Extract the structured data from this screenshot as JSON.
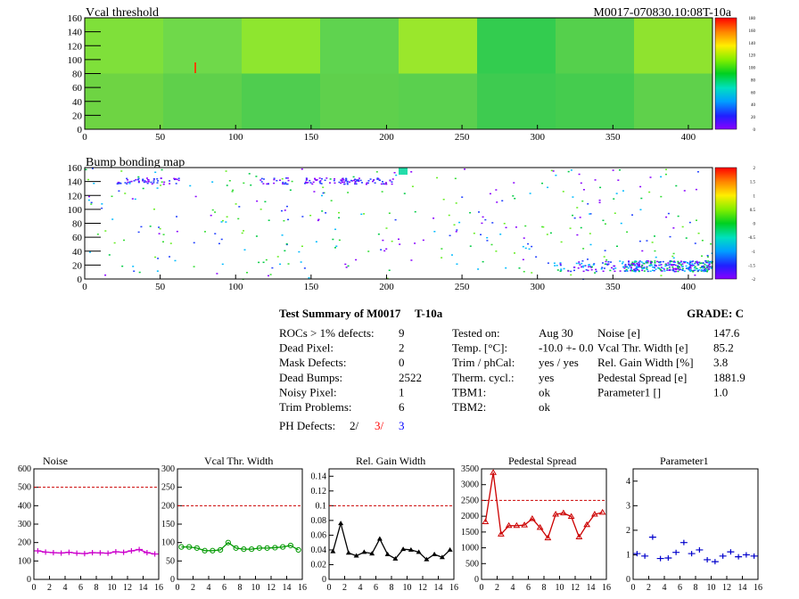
{
  "maps": [
    {
      "title": "Vcal threshold",
      "id_label": "M0017-070830.10:08T-10a",
      "x_ticks": [
        "0",
        "50",
        "100",
        "150",
        "200",
        "250",
        "300",
        "350",
        "400"
      ],
      "y_ticks": [
        "0",
        "20",
        "40",
        "60",
        "80",
        "100",
        "120",
        "140",
        "160"
      ],
      "colorbar_ticks": [
        "0",
        "20",
        "40",
        "60",
        "80",
        "100",
        "120",
        "140",
        "160",
        "180"
      ]
    },
    {
      "title": "Bump bonding map",
      "x_ticks": [
        "0",
        "50",
        "100",
        "150",
        "200",
        "250",
        "300",
        "350",
        "400"
      ],
      "y_ticks": [
        "0",
        "20",
        "40",
        "60",
        "80",
        "100",
        "120",
        "140",
        "160"
      ],
      "colorbar_ticks": [
        "-2",
        "-1.5",
        "-1",
        "-0.5",
        "0",
        "0.5",
        "1",
        "1.5",
        "2"
      ]
    }
  ],
  "summary": {
    "title": "Test Summary of M0017",
    "temp_label": "T-10a",
    "grade": "GRADE:  C",
    "rows_left": [
      {
        "label": "ROCs > 1% defects:",
        "value": "9"
      },
      {
        "label": "Dead Pixel:",
        "value": "2"
      },
      {
        "label": "Mask Defects:",
        "value": "0"
      },
      {
        "label": "Dead Bumps:",
        "value": "2522"
      },
      {
        "label": "Noisy Pixel:",
        "value": "1"
      },
      {
        "label": "Trim Problems:",
        "value": "6"
      }
    ],
    "ph_defects": {
      "label": "PH Defects:",
      "v1": "2/",
      "v2": "3/",
      "v3": "3",
      "c1": "#000000",
      "c2": "#ff0000",
      "c3": "#0000ff"
    },
    "rows_mid": [
      {
        "label": "Tested on:",
        "value": "Aug 30"
      },
      {
        "label": "Temp. [°C]:",
        "value": "-10.0 +- 0.0"
      },
      {
        "label": "Trim / phCal:",
        "value": "yes / yes"
      },
      {
        "label": "Therm. cycl.:",
        "value": "yes"
      },
      {
        "label": "TBM1:",
        "value": "ok"
      },
      {
        "label": "TBM2:",
        "value": "ok"
      }
    ],
    "rows_right": [
      {
        "label": "Noise [e]",
        "value": "147.6"
      },
      {
        "label": "Vcal Thr. Width [e]",
        "value": "85.2"
      },
      {
        "label": "Rel. Gain Width [%]",
        "value": "3.8"
      },
      {
        "label": "Pedestal Spread [e]",
        "value": "1881.9"
      },
      {
        "label": "Parameter1 []",
        "value": "1.0"
      }
    ]
  },
  "chart_data": [
    {
      "type": "line",
      "title": "Noise",
      "x": [
        0,
        1,
        2,
        3,
        4,
        5,
        6,
        7,
        8,
        9,
        10,
        11,
        12,
        13,
        14,
        15
      ],
      "values": [
        155,
        148,
        145,
        143,
        147,
        142,
        140,
        145,
        144,
        142,
        150,
        147,
        155,
        162,
        145,
        138
      ],
      "ylim": [
        0,
        600
      ],
      "y_ticks": [
        "0",
        "100",
        "200",
        "300",
        "400",
        "500",
        "600"
      ],
      "x_ticks": [
        "0",
        "2",
        "4",
        "6",
        "8",
        "10",
        "12",
        "14",
        "16"
      ],
      "threshold": 500,
      "color": "#cc00cc",
      "marker": "plus"
    },
    {
      "type": "line",
      "title": "Vcal Thr. Width",
      "x": [
        0,
        1,
        2,
        3,
        4,
        5,
        6,
        7,
        8,
        9,
        10,
        11,
        12,
        13,
        14,
        15
      ],
      "values": [
        88,
        88,
        85,
        78,
        78,
        80,
        100,
        85,
        82,
        82,
        85,
        85,
        86,
        88,
        92,
        80
      ],
      "ylim": [
        0,
        300
      ],
      "y_ticks": [
        "0",
        "50",
        "100",
        "150",
        "200",
        "250",
        "300"
      ],
      "x_ticks": [
        "0",
        "2",
        "4",
        "6",
        "8",
        "10",
        "12",
        "14",
        "16"
      ],
      "threshold": 200,
      "color": "#009900",
      "marker": "circle"
    },
    {
      "type": "line",
      "title": "Rel. Gain Width",
      "x": [
        0,
        1,
        2,
        3,
        4,
        5,
        6,
        7,
        8,
        9,
        10,
        11,
        12,
        13,
        14,
        15
      ],
      "values": [
        0.038,
        0.076,
        0.036,
        0.032,
        0.037,
        0.035,
        0.055,
        0.034,
        0.028,
        0.041,
        0.04,
        0.037,
        0.027,
        0.034,
        0.03,
        0.04
      ],
      "ylim": [
        0,
        0.15
      ],
      "y_ticks": [
        "0",
        "0.02",
        "0.04",
        "0.06",
        "0.08",
        "0.1",
        "0.12",
        "0.14"
      ],
      "y_tick_values": [
        0,
        0.02,
        0.04,
        0.06,
        0.08,
        0.1,
        0.12,
        0.14
      ],
      "x_ticks": [
        "0",
        "2",
        "4",
        "6",
        "8",
        "10",
        "12",
        "14",
        "16"
      ],
      "threshold": 0.1,
      "color": "#000000",
      "marker": "triangle"
    },
    {
      "type": "line",
      "title": "Pedestal Spread",
      "x": [
        0,
        1,
        2,
        3,
        4,
        5,
        6,
        7,
        8,
        9,
        10,
        11,
        12,
        13,
        14,
        15
      ],
      "values": [
        1820,
        3380,
        1430,
        1700,
        1700,
        1720,
        1920,
        1640,
        1310,
        2060,
        2100,
        1990,
        1340,
        1730,
        2060,
        2120
      ],
      "ylim": [
        0,
        3500
      ],
      "y_ticks": [
        "0",
        "500",
        "1000",
        "1500",
        "2000",
        "2500",
        "3000",
        "3500"
      ],
      "x_ticks": [
        "0",
        "2",
        "4",
        "6",
        "8",
        "10",
        "12",
        "14",
        "16"
      ],
      "threshold": 2500,
      "color": "#cc0000",
      "marker": "open-triangle"
    },
    {
      "type": "scatter",
      "title": "Parameter1",
      "x": [
        0,
        1,
        2,
        3,
        4,
        5,
        6,
        7,
        8,
        9,
        10,
        11,
        12,
        13,
        14,
        15
      ],
      "values": [
        1.05,
        0.95,
        1.72,
        0.85,
        0.87,
        1.1,
        1.5,
        1.05,
        1.2,
        0.8,
        0.72,
        0.95,
        1.12,
        0.92,
        1.0,
        0.95
      ],
      "ylim": [
        0,
        4.5
      ],
      "y_ticks": [
        "0",
        "1",
        "2",
        "3",
        "4"
      ],
      "x_ticks": [
        "0",
        "2",
        "4",
        "6",
        "8",
        "10",
        "12",
        "14",
        "16"
      ],
      "color": "#0000cc",
      "marker": "plus"
    }
  ]
}
